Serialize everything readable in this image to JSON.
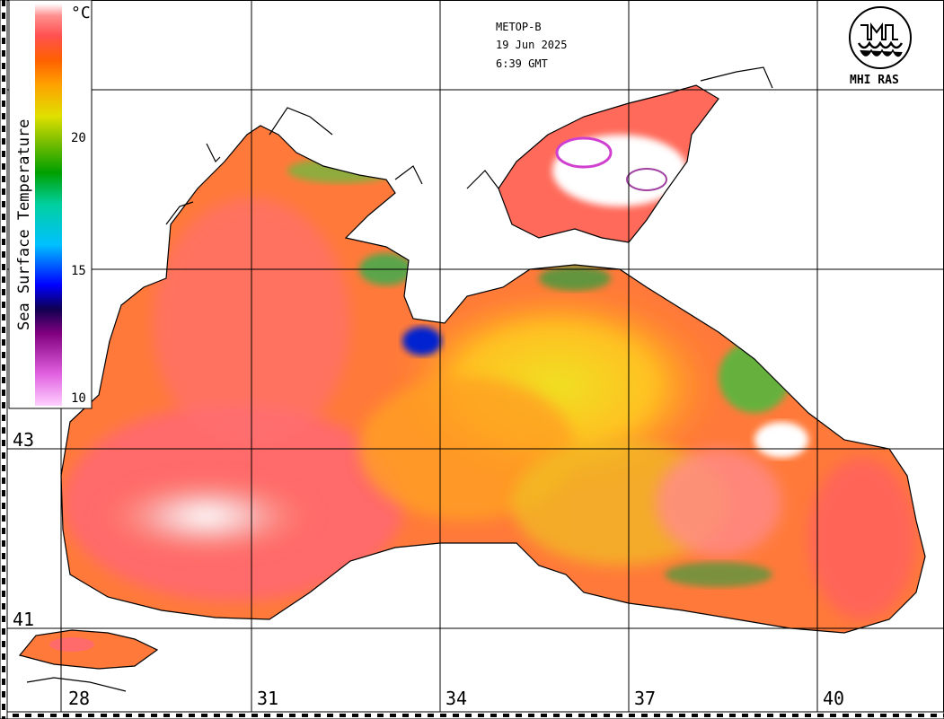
{
  "header": {
    "satellite": "METOP-B",
    "date": "19 Jun 2025",
    "time": "6:39 GMT"
  },
  "logo": {
    "text": "MHI RAS",
    "icon": "mhi-ras-emblem-icon"
  },
  "legend": {
    "title": "Sea Surface Temperature",
    "unit": "°C",
    "ticks": [
      "20",
      "15",
      "10"
    ],
    "range": [
      10,
      25
    ],
    "color_stops": [
      "#ffd0ff",
      "#e060e0",
      "#800080",
      "#000060",
      "#0000ff",
      "#00c0ff",
      "#00d0a0",
      "#00a000",
      "#80c000",
      "#e0e000",
      "#ffa000",
      "#ff6000",
      "#ff5050",
      "#ff9090",
      "#ffffff"
    ]
  },
  "axes": {
    "longitude_labels": [
      "28",
      "31",
      "34",
      "37",
      "40"
    ],
    "latitude_labels": [
      "43",
      "41"
    ]
  }
}
